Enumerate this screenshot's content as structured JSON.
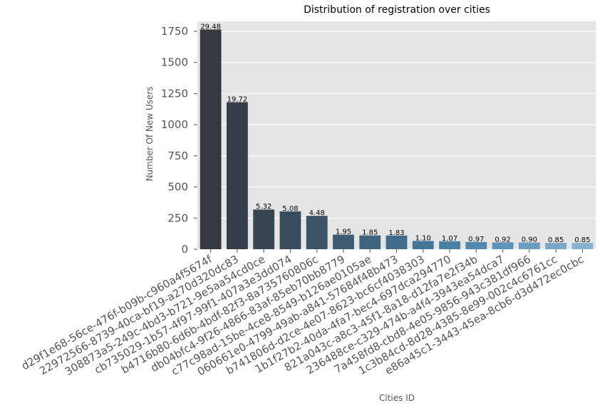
{
  "chart_data": {
    "type": "bar",
    "title": "Distribution of registration over cities",
    "xlabel": "Cities ID",
    "ylabel": "Number Of New Users",
    "ylim": [
      0,
      1830
    ],
    "yticks": [
      0,
      250,
      500,
      750,
      1000,
      1250,
      1500,
      1750
    ],
    "grid": true,
    "categories": [
      "d29f1e68-56ce-476f-b09b-c960a4f5674f",
      "22972566-8739-40ca-bf19-a270d320dc83",
      "308873a5-249c-4bd3-b721-9e5aa54cd0ce",
      "cb735029-1b57-4f97-99f1-407a3e3dd074",
      "b4716b80-6d6b-4bdf-82f3-8a735760806c",
      "db04bfc4-9f26-4866-83af-85eb70bb8779",
      "c77c98ad-15be-4ce8-8549-b126ae0105ae",
      "060661e0-4799-49ab-a841-57684f48b473",
      "b741806d-d2ce-4e07-8623-bc6cf4038303",
      "1b1f27b2-40da-4fa7-bec4-697dca294770",
      "821a043c-a8c3-45f1-8a18-d12fa7e2f34b",
      "236488ce-c329-474b-a4f4-3943ea54dca7",
      "7a458fd8-cbd8-4e05-9856-943c381df966",
      "1c3b84cd-8d28-4385-8e99-002c4c6761cc",
      "e86a45c1-3443-45ea-8cb6-d3d472ec0cbc"
    ],
    "values": [
      1765,
      1181,
      319,
      304,
      268,
      117,
      111,
      110,
      66,
      64,
      58,
      55,
      54,
      51,
      51
    ],
    "data_labels": [
      "29.48",
      "19.72",
      "5.32",
      "5.08",
      "4.48",
      "1.95",
      "1.85",
      "1.83",
      "1.10",
      "1.07",
      "0.97",
      "0.92",
      "0.90",
      "0.85",
      "0.85"
    ],
    "colors": [
      "#343a40",
      "#363f49",
      "#384652",
      "#394c5d",
      "#3b5468",
      "#3d5c74",
      "#3e6480",
      "#416c8c",
      "#457599",
      "#4b80a6",
      "#5389b1",
      "#5d93ba",
      "#6a9dc2",
      "#79a7ca",
      "#88b2d1"
    ],
    "background": "#e5e5e5"
  }
}
